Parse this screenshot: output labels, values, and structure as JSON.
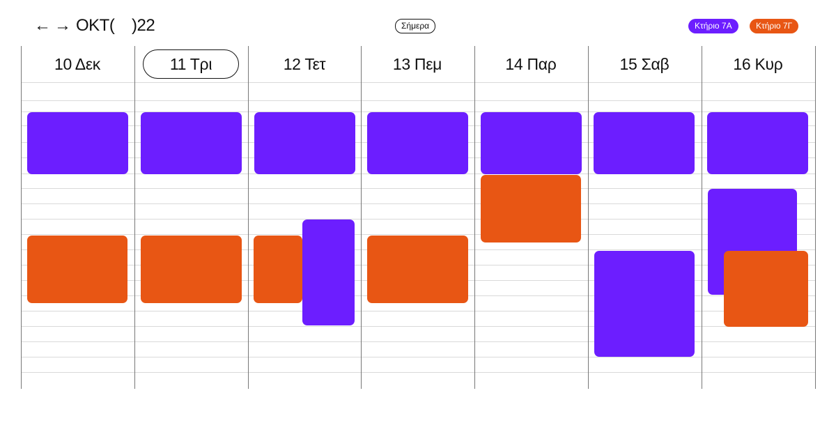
{
  "header": {
    "back_label": "←",
    "forward_label": "→",
    "period_label": "ΟΚΤ(    )22",
    "today_label": "Σήμερα"
  },
  "legend": [
    {
      "label": "Κτήριο 7Α",
      "color": "#6C1EFF"
    },
    {
      "label": "Κτήριο 7Γ",
      "color": "#E85614"
    }
  ],
  "days": [
    {
      "label": "10 Δεκ",
      "selected": false
    },
    {
      "label": "11 Τρι",
      "selected": true
    },
    {
      "label": "12 Τετ",
      "selected": false
    },
    {
      "label": "13 Πεμ",
      "selected": false
    },
    {
      "label": "14 Παρ",
      "selected": false
    },
    {
      "label": "15 Σαβ",
      "selected": false
    },
    {
      "label": "16 Κυρ",
      "selected": false
    }
  ],
  "events": [
    {
      "day": 0,
      "building": "Κτήριο 7Α"
    },
    {
      "day": 0,
      "building": "Κτήριο 7Γ"
    },
    {
      "day": 1,
      "building": "Κτήριο 7Α"
    },
    {
      "day": 1,
      "building": "Κτήριο 7Γ"
    },
    {
      "day": 2,
      "building": "Κτήριο 7Α"
    },
    {
      "day": 2,
      "building": "Κτήριο 7Γ"
    },
    {
      "day": 2,
      "building": "Κτήριο 7Α"
    },
    {
      "day": 3,
      "building": "Κτήριο 7Α"
    },
    {
      "day": 3,
      "building": "Κτήριο 7Γ"
    },
    {
      "day": 4,
      "building": "Κτήριο 7Α"
    },
    {
      "day": 4,
      "building": "Κτήριο 7Γ"
    },
    {
      "day": 5,
      "building": "Κτήριο 7Α"
    },
    {
      "day": 5,
      "building": "Κτήριο 7Α"
    },
    {
      "day": 6,
      "building": "Κτήριο 7Α"
    },
    {
      "day": 6,
      "building": "Κτήριο 7Α"
    },
    {
      "day": 6,
      "building": "Κτήριο 7Γ"
    }
  ]
}
